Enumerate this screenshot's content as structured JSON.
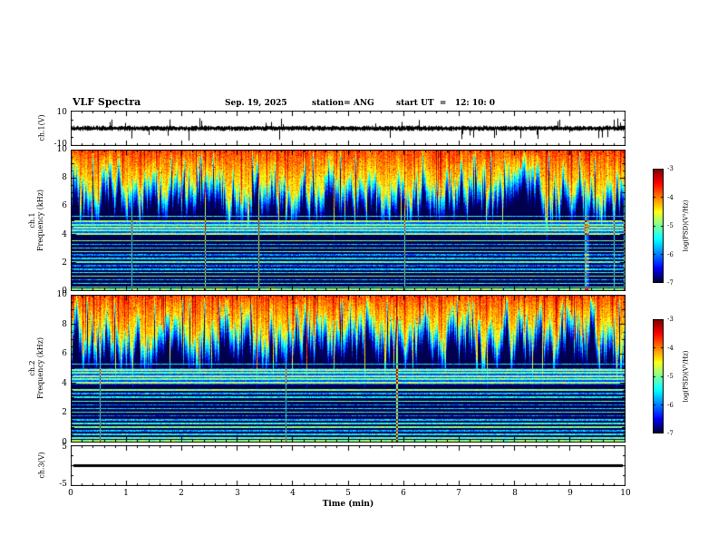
{
  "header": {
    "title": "VLF Spectra",
    "date": "Sep. 19, 2025",
    "station": "station= ANG",
    "start_ut": "start UT  =   12: 10: 0"
  },
  "panels": {
    "ch1v": {
      "ylabel": "ch.1(V)",
      "ytick_top": "10",
      "ytick_bottom": "-10"
    },
    "spec1": {
      "ylabel_channel": "ch.1",
      "ylabel_axis": "Frequency (kHz)"
    },
    "spec2": {
      "ylabel_channel": "ch.2",
      "ylabel_axis": "Frequency (kHz)"
    },
    "ch3v": {
      "ylabel": "ch.3(V)",
      "ytick_top": "5",
      "ytick_bottom": "-5"
    }
  },
  "freq_ticks": [
    "10",
    "8",
    "6",
    "4",
    "2",
    "0"
  ],
  "xaxis": {
    "label": "Time (min)",
    "ticks": [
      "0",
      "1",
      "2",
      "3",
      "4",
      "5",
      "6",
      "7",
      "8",
      "9",
      "10"
    ]
  },
  "colorbar": {
    "label": "log(PSD)(V²/Hz)",
    "ticks": [
      "-3",
      "-4",
      "-5",
      "-6",
      "-7"
    ]
  },
  "chart_data": [
    {
      "type": "line",
      "name": "ch.1 raw voltage",
      "ylabel": "ch.1(V)",
      "xlim": [
        0,
        10
      ],
      "ylim": [
        -10,
        10
      ],
      "seed": 424242,
      "description": "continuous noise band centered on 0 V, about ±1.5 V, with irregular impulsive spikes to about ±6 V across the whole 10 min record"
    },
    {
      "type": "heatmap",
      "name": "ch.1 VLF spectrogram",
      "xlabel": "Time (min)",
      "ylabel": "Frequency (kHz)",
      "xlim": [
        0,
        10
      ],
      "ylim": [
        0,
        10
      ],
      "zlabel": "log(PSD)(V²/Hz)",
      "zlim": [
        -7,
        -3
      ],
      "colormap": "jet",
      "broadband_band_khz": [
        7.4,
        10
      ],
      "line_band_khz": [
        4.92,
        4.7,
        4.48,
        4.27,
        4.06
      ],
      "narrow_lines_khz": [
        3.55,
        3.3,
        3.05,
        2.8,
        2.55,
        2.3,
        2.05,
        1.8,
        1.55,
        1.3,
        1.05,
        0.8,
        0.55,
        0.3
      ],
      "seed": 131871
    },
    {
      "type": "heatmap",
      "name": "ch.2 VLF spectrogram",
      "xlabel": "Time (min)",
      "ylabel": "Frequency (kHz)",
      "xlim": [
        0,
        10
      ],
      "ylim": [
        0,
        10
      ],
      "zlabel": "log(PSD)(V²/Hz)",
      "zlim": [
        -7,
        -3
      ],
      "colormap": "jet",
      "broadband_band_khz": [
        7.4,
        10
      ],
      "line_band_khz": [
        4.92,
        4.7,
        4.48,
        4.27,
        4.06
      ],
      "narrow_lines_khz": [
        3.55,
        3.3,
        3.05,
        2.8,
        2.55,
        2.3,
        2.05,
        1.8,
        1.55,
        1.3,
        1.05,
        0.8,
        0.55,
        0.3
      ],
      "seed": 734129
    },
    {
      "type": "line",
      "name": "ch.3 raw voltage",
      "ylabel": "ch.3(V)",
      "xlim": [
        0,
        10
      ],
      "ylim": [
        -5,
        5
      ],
      "seed": 99,
      "description": "flat line at 0 V (no signal on channel 3)"
    }
  ]
}
